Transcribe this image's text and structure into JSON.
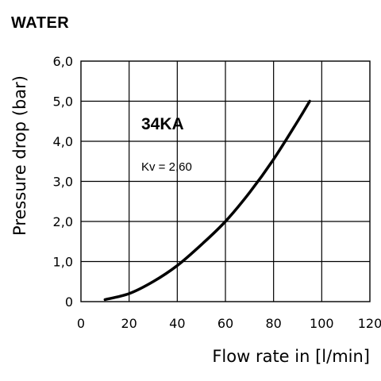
{
  "chart_data": {
    "type": "line",
    "title": "WATER",
    "xlabel": "Flow rate in [l/min]",
    "ylabel": "Pressure drop (bar)",
    "xlim": [
      0,
      120
    ],
    "ylim": [
      0,
      6
    ],
    "x_ticks": [
      "0",
      "20",
      "40",
      "60",
      "80",
      "100",
      "120"
    ],
    "y_ticks": [
      "0",
      "1,0",
      "2,0",
      "3,0",
      "4,0",
      "5,0",
      "6,0"
    ],
    "grid": true,
    "series": [
      {
        "name": "34KA",
        "annotation": "Kv = 2,60",
        "x": [
          10,
          20,
          30,
          40,
          50,
          60,
          70,
          80,
          90,
          95
        ],
        "y": [
          0.05,
          0.2,
          0.5,
          0.9,
          1.42,
          2.0,
          2.72,
          3.55,
          4.5,
          5.0
        ]
      }
    ],
    "line_color": "#000000"
  }
}
